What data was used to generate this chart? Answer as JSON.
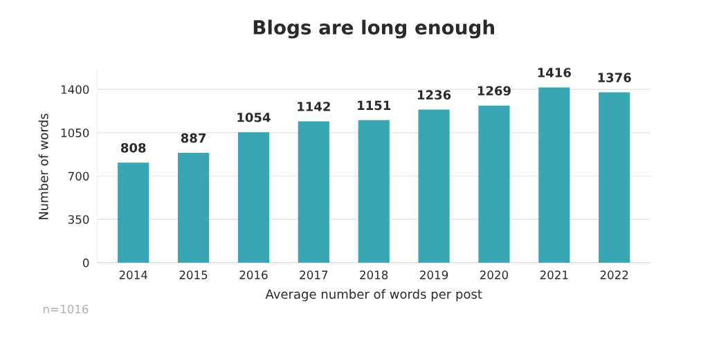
{
  "chart_data": {
    "type": "bar",
    "title": "Blogs are long enough",
    "xlabel": "Average number of words per post",
    "ylabel": "Number of words",
    "categories": [
      "2014",
      "2015",
      "2016",
      "2017",
      "2018",
      "2019",
      "2020",
      "2021",
      "2022"
    ],
    "values": [
      808,
      887,
      1054,
      1142,
      1151,
      1236,
      1269,
      1416,
      1376
    ],
    "color": "#38a6b3",
    "ylim": [
      0,
      1550
    ],
    "yticks": [
      0,
      350,
      700,
      1050,
      1400
    ],
    "grid": "y",
    "data_labels": true,
    "annotations": [
      "n=1016"
    ]
  }
}
